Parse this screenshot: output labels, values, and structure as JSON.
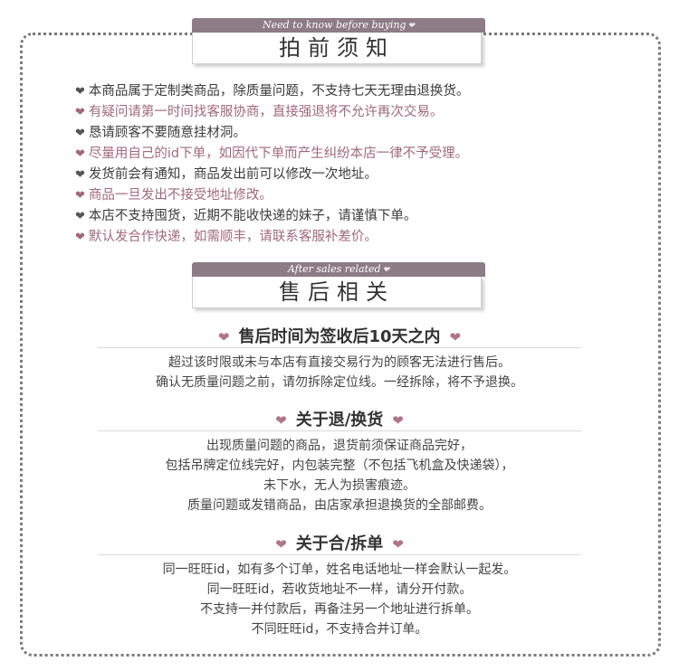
{
  "section1": {
    "subtitle": "Need to know before buying",
    "title": "拍前须知",
    "rules": [
      {
        "text": "本商品属于定制类商品，除质量问题，不支持七天无理由退换货。",
        "tone": "dark"
      },
      {
        "text": "有疑问请第一时间找客服协商，直接强退将不允许再次交易。",
        "tone": "pink"
      },
      {
        "text": "恳请顾客不要随意挂材洞。",
        "tone": "dark"
      },
      {
        "text": "尽量用自己的id下单，如因代下单而产生纠纷本店一律不予受理。",
        "tone": "pink"
      },
      {
        "text": "发货前会有通知，商品发出前可以修改一次地址。",
        "tone": "dark"
      },
      {
        "text": "商品一旦发出不接受地址修改。",
        "tone": "pink"
      },
      {
        "text": "本店不支持囤货，近期不能收快递的妹子，请谨慎下单。",
        "tone": "dark"
      },
      {
        "text": "默认发合作快递，如需顺丰，请联系客服补差价。",
        "tone": "pink"
      }
    ]
  },
  "section2": {
    "subtitle": "After sales related",
    "title": "售后相关",
    "blocks": [
      {
        "heading": "售后时间为签收后10天之内",
        "lines": [
          "超过该时限或未与本店有直接交易行为的顾客无法进行售后。",
          "确认无质量问题之前，请勿拆除定位线。一经拆除，将不予退换。"
        ]
      },
      {
        "heading": "关于退/换货",
        "lines": [
          "出现质量问题的商品，退货前须保证商品完好，",
          "包括吊牌定位线完好，内包装完整（不包括飞机盒及快递袋），",
          "未下水，无人为损害痕迹。",
          "质量问题或发错商品，由店家承担退换货的全部邮费。"
        ]
      },
      {
        "heading": "关于合/拆单",
        "lines": [
          "同一旺旺id，如有多个订单，姓名电话地址一样会默认一起发。",
          "同一旺旺id，若收货地址不一样，请分开付款。",
          "不支持一并付款后，再备注另一个地址进行拆单。",
          "不同旺旺id，不支持合并订单。"
        ]
      }
    ]
  },
  "icons": {
    "bullet": "heart-icon"
  },
  "colors": {
    "tag": "#8d7b86",
    "pink_text": "#a0687c",
    "heart": "#b0748a",
    "border": "#7a7a7a"
  }
}
